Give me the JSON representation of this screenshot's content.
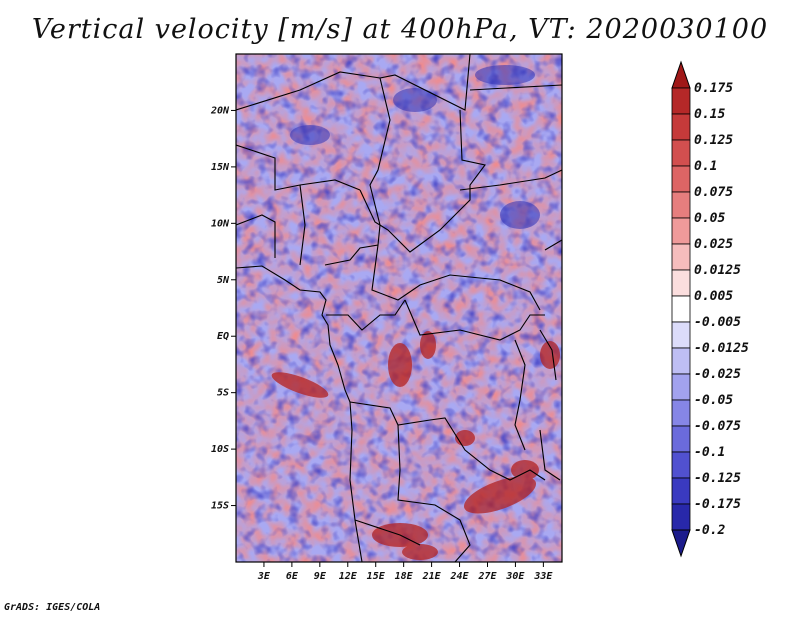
{
  "title": "Vertical velocity [m/s] at 400hPa, VT: 2020030100",
  "credit": "GrADS: IGES/COLA",
  "map": {
    "lon_range": [
      0,
      35
    ],
    "lat_range": [
      -20,
      25
    ],
    "x_ticks": [
      "3E",
      "6E",
      "9E",
      "12E",
      "15E",
      "18E",
      "21E",
      "24E",
      "27E",
      "30E",
      "33E"
    ],
    "y_ticks": [
      "20N",
      "15N",
      "10N",
      "5N",
      "EQ",
      "5S",
      "10S",
      "15S"
    ]
  },
  "colorbar": {
    "labels": [
      "0.175",
      "0.15",
      "0.125",
      "0.1",
      "0.075",
      "0.05",
      "0.025",
      "0.0125",
      "0.005",
      "-0.005",
      "-0.0125",
      "-0.025",
      "-0.05",
      "-0.075",
      "-0.1",
      "-0.125",
      "-0.175",
      "-0.2"
    ],
    "colors": [
      "#a01818",
      "#b52828",
      "#c53a3a",
      "#d24f4f",
      "#dd6565",
      "#e67e7e",
      "#ef9a9a",
      "#f6bdbd",
      "#fbdede",
      "#ffffff",
      "#dcdcfa",
      "#bebef4",
      "#a2a2ee",
      "#8686e6",
      "#6b6bdc",
      "#5151d0",
      "#3a3ac0",
      "#2828aa",
      "#1c1c8c"
    ]
  },
  "colors": {
    "positive": "#e07878",
    "negative": "#8a8aee",
    "strong_positive": "#a81818",
    "border": "#000000"
  }
}
